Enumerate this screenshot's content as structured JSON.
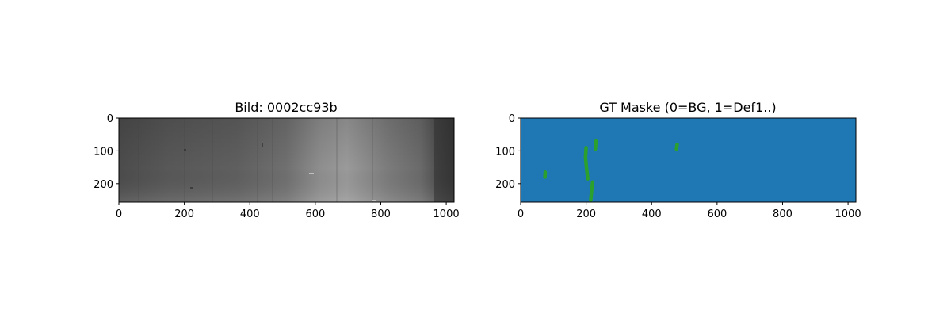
{
  "chart_data": [
    {
      "type": "heatmap",
      "title": "Bild: 0002cc93b",
      "xlabel": "",
      "ylabel": "",
      "xlim": [
        0,
        1024
      ],
      "ylim": [
        256,
        0
      ],
      "xticks": [
        0,
        200,
        400,
        600,
        800,
        1000
      ],
      "yticks": [
        0,
        100,
        200
      ],
      "colormap": "gray",
      "grid": false
    },
    {
      "type": "heatmap",
      "title": "GT Maske (0=BG, 1=Def1..)",
      "xlabel": "",
      "ylabel": "",
      "xlim": [
        0,
        1024
      ],
      "ylim": [
        256,
        0
      ],
      "xticks": [
        0,
        200,
        400,
        600,
        800,
        1000
      ],
      "yticks": [
        0,
        100,
        200
      ],
      "background_value": 0,
      "colors": {
        "0": "#1f77b4",
        "1": "#2ca02c"
      },
      "defect_regions": [
        {
          "class": 1,
          "points": [
            [
              200,
              90
            ],
            [
              198,
              120
            ],
            [
              201,
              150
            ],
            [
              205,
              185
            ]
          ]
        },
        {
          "class": 1,
          "points": [
            [
              220,
              195
            ],
            [
              217,
              220
            ],
            [
              214,
              250
            ]
          ]
        },
        {
          "class": 1,
          "points": [
            [
              230,
              70
            ],
            [
              228,
              95
            ]
          ]
        },
        {
          "class": 1,
          "points": [
            [
              478,
              80
            ],
            [
              476,
              95
            ]
          ]
        },
        {
          "class": 1,
          "points": [
            [
              75,
              165
            ],
            [
              74,
              180
            ]
          ]
        }
      ],
      "grid": false
    }
  ]
}
